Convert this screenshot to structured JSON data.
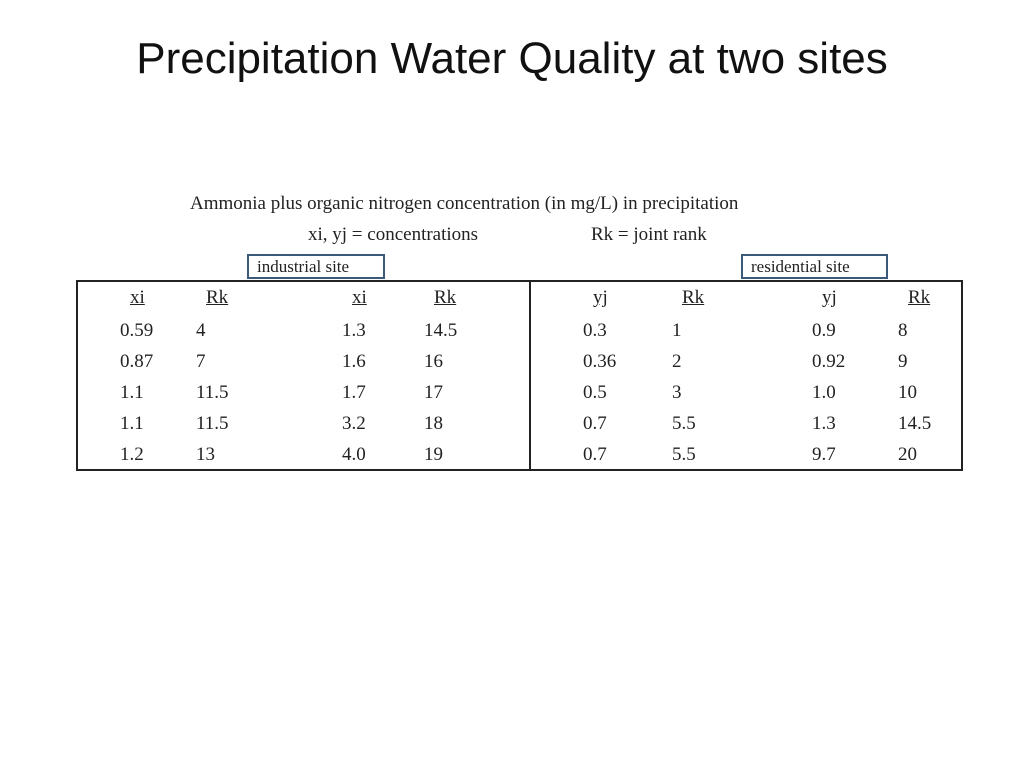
{
  "title": "Precipitation Water Quality at two sites",
  "table_caption": {
    "line1": "Ammonia plus organic nitrogen concentration (in mg/L) in precipitation",
    "line2_left": "xi, yj = concentrations",
    "line2_right": "Rk = joint rank"
  },
  "sites": {
    "industrial": "industrial site",
    "residential": "residential site"
  },
  "columns": [
    "xi",
    "Rk",
    "xi",
    "Rk",
    "yj",
    "Rk",
    "yj",
    "Rk"
  ],
  "rows": [
    [
      "0.59",
      "4",
      "1.3",
      "14.5",
      "0.3",
      "1",
      "0.9",
      "8"
    ],
    [
      "0.87",
      "7",
      "1.6",
      "16",
      "0.36",
      "2",
      "0.92",
      "9"
    ],
    [
      "1.1",
      "11.5",
      "1.7",
      "17",
      "0.5",
      "3",
      "1.0",
      "10"
    ],
    [
      "1.1",
      "11.5",
      "3.2",
      "18",
      "0.7",
      "5.5",
      "1.3",
      "14.5"
    ],
    [
      "1.2",
      "13",
      "4.0",
      "19",
      "0.7",
      "5.5",
      "9.7",
      "20"
    ]
  ]
}
